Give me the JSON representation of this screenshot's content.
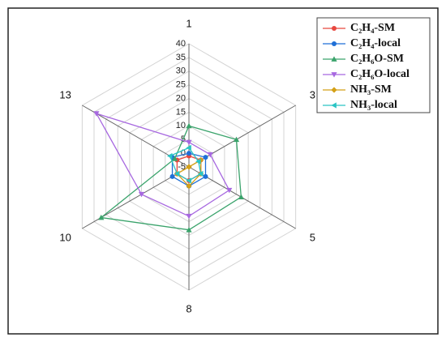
{
  "chart_data": {
    "type": "radar",
    "categories": [
      "1",
      "3",
      "5",
      "8",
      "10",
      "13"
    ],
    "ylim": [
      -5,
      40
    ],
    "yticks": [
      -5,
      0,
      5,
      10,
      15,
      20,
      25,
      30,
      35,
      40
    ],
    "grid": true,
    "legend": "upper right",
    "series": [
      {
        "name": "C₂H₄-SM",
        "color": "#e8473f",
        "marker": "circle",
        "values": [
          -1,
          0,
          0,
          0,
          0,
          0
        ]
      },
      {
        "name": "C₂H₄-local",
        "color": "#1f6fd6",
        "marker": "circle",
        "values": [
          0,
          2,
          2,
          2,
          2,
          2
        ]
      },
      {
        "name": "C₂H₆O-SM",
        "color": "#3aa36b",
        "marker": "triangle-up",
        "values": [
          10,
          15,
          17,
          18,
          32,
          1
        ]
      },
      {
        "name": "C₂H₆O-local",
        "color": "#a768e0",
        "marker": "triangle-down",
        "values": [
          4,
          4,
          12,
          13,
          15,
          34
        ]
      },
      {
        "name": "NH₃-SM",
        "color": "#d4a017",
        "marker": "diamond",
        "values": [
          -5,
          0,
          0,
          2,
          0,
          -5
        ]
      },
      {
        "name": "NH₃-local",
        "color": "#2ac4c4",
        "marker": "triangle-left",
        "values": [
          2,
          -1,
          0,
          0,
          0,
          3
        ]
      }
    ]
  }
}
